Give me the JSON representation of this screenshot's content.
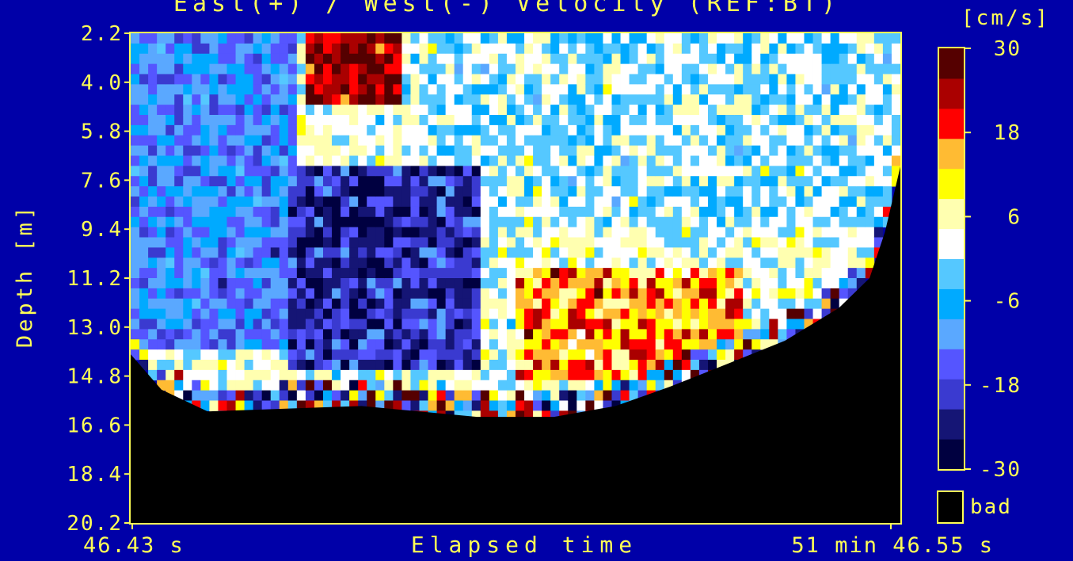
{
  "chart_data": {
    "type": "heatmap",
    "title": "East(+) / West(-) Velocity (REF:BT)",
    "ylabel": "Depth [m]",
    "xlabel": "Elapsed time",
    "x_start_label": "46.43 s",
    "x_end_label": "51 min 46.55 s",
    "y_ticks": [
      "2.2",
      "4.0",
      "5.8",
      "7.6",
      "9.4",
      "11.2",
      "13.0",
      "14.8",
      "16.6",
      "18.4",
      "20.2"
    ],
    "ylim": [
      2.2,
      20.2
    ],
    "units_label": "[cm/s]",
    "colorbar": {
      "min": -30,
      "max": 30,
      "tick_labels": [
        "30",
        "18",
        "6",
        "-6",
        "-18",
        "-30"
      ],
      "bad_label": "bad",
      "colors": [
        "#000040",
        "#151575",
        "#3a3ad0",
        "#5555ff",
        "#5aa8ff",
        "#00aaff",
        "#55c8ff",
        "#ffffff",
        "#ffffb0",
        "#ffff00",
        "#ffbb33",
        "#ff0000",
        "#aa0000",
        "#550000"
      ]
    },
    "bad_color": "#000000",
    "bottom_boundary": {
      "x_fraction": [
        0.0,
        0.04,
        0.1,
        0.3,
        0.45,
        0.55,
        0.63,
        0.7,
        0.78,
        0.85,
        0.92,
        0.96,
        0.98,
        1.0
      ],
      "depth_m": [
        14.0,
        15.3,
        16.1,
        15.9,
        16.3,
        16.3,
        15.9,
        15.2,
        14.3,
        13.5,
        12.3,
        11.2,
        9.5,
        7.1
      ]
    },
    "velocity_regions": [
      {
        "region": "near-surface, early time",
        "x_fraction": [
          0.0,
          0.22
        ],
        "depth_m": [
          2.2,
          14.0
        ],
        "velocity_cm_s": [
          -18,
          -6
        ]
      },
      {
        "region": "near-surface, middle",
        "x_fraction": [
          0.23,
          0.35
        ],
        "depth_m": [
          2.2,
          5.0
        ],
        "velocity_cm_s": [
          18,
          30
        ]
      },
      {
        "region": "mid-depth, middle",
        "x_fraction": [
          0.2,
          0.45
        ],
        "depth_m": [
          7.0,
          14.5
        ],
        "velocity_cm_s": [
          -30,
          -12
        ]
      },
      {
        "region": "upper, later time",
        "x_fraction": [
          0.35,
          1.0
        ],
        "depth_m": [
          2.2,
          9.4
        ],
        "velocity_cm_s": [
          -6,
          6
        ]
      },
      {
        "region": "lower, later time",
        "x_fraction": [
          0.5,
          0.8
        ],
        "depth_m": [
          11.0,
          15.0
        ],
        "velocity_cm_s": [
          6,
          24
        ]
      }
    ]
  }
}
